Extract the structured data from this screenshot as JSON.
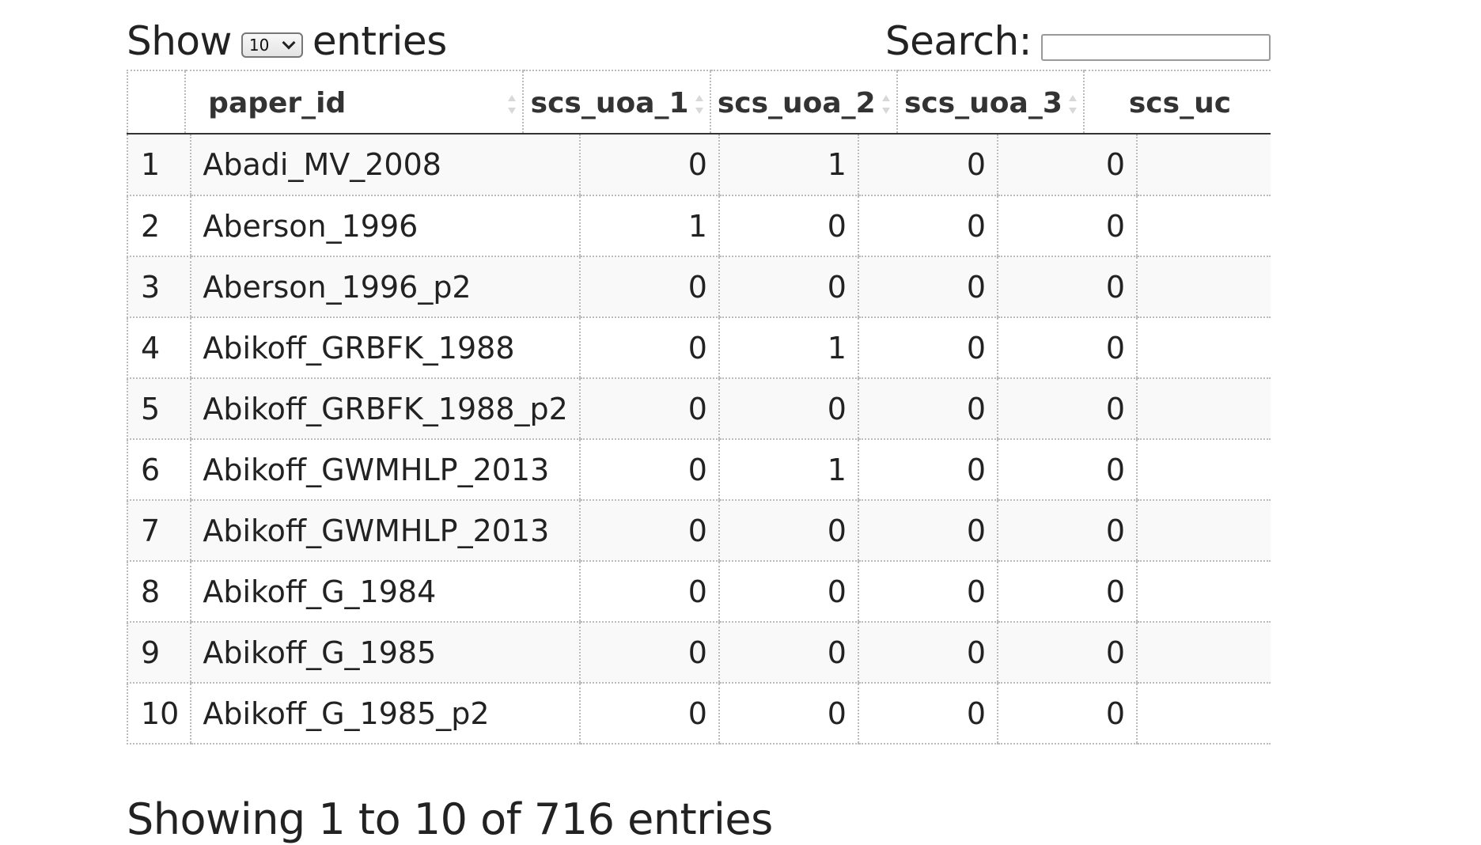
{
  "controls": {
    "show_label": "Show",
    "entries_label": "entries",
    "page_length_value": "10",
    "search_label": "Search:",
    "search_value": ""
  },
  "table": {
    "columns": [
      "",
      "paper_id",
      "scs_uoa_1",
      "scs_uoa_2",
      "scs_uoa_3",
      "scs_uc"
    ],
    "rows": [
      [
        "1",
        "Abadi_MV_2008",
        "0",
        "1",
        "0",
        "0"
      ],
      [
        "2",
        "Aberson_1996",
        "1",
        "0",
        "0",
        "0"
      ],
      [
        "3",
        "Aberson_1996_p2",
        "0",
        "0",
        "0",
        "0"
      ],
      [
        "4",
        "Abikoff_GRBFK_1988",
        "0",
        "1",
        "0",
        "0"
      ],
      [
        "5",
        "Abikoff_GRBFK_1988_p2",
        "0",
        "0",
        "0",
        "0"
      ],
      [
        "6",
        "Abikoff_GWMHLP_2013",
        "0",
        "1",
        "0",
        "0"
      ],
      [
        "7",
        "Abikoff_GWMHLP_2013",
        "0",
        "0",
        "0",
        "0"
      ],
      [
        "8",
        "Abikoff_G_1984",
        "0",
        "0",
        "0",
        "0"
      ],
      [
        "9",
        "Abikoff_G_1985",
        "0",
        "0",
        "0",
        "0"
      ],
      [
        "10",
        "Abikoff_G_1985_p2",
        "0",
        "0",
        "0",
        "0"
      ]
    ]
  },
  "footer": {
    "info_text": "Showing 1 to 10 of 716 entries"
  }
}
